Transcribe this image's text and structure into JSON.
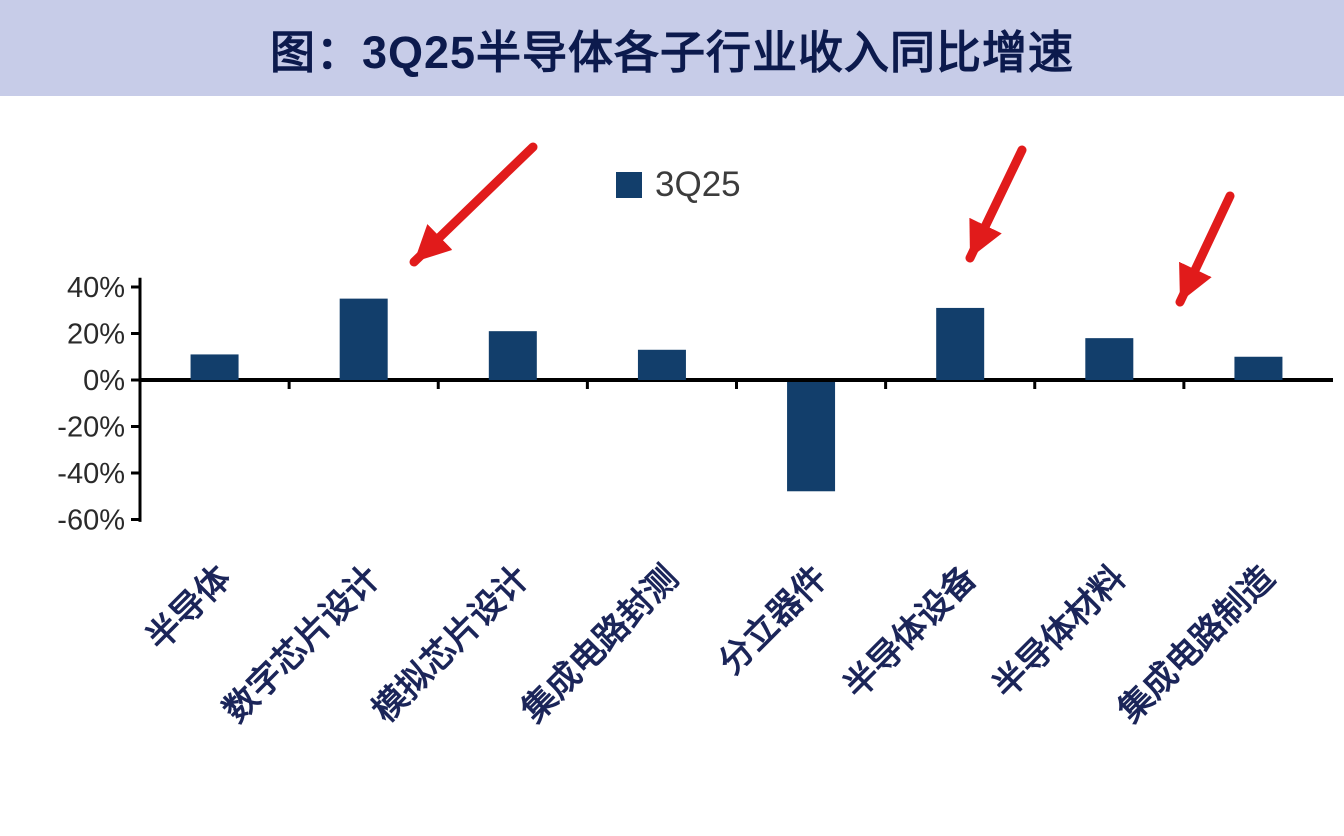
{
  "title": "图：3Q25半导体各子行业收入同比增速",
  "chart_data": {
    "type": "bar",
    "title": "图：3Q25半导体各子行业收入同比增速",
    "categories": [
      "半导体",
      "数字芯片设计",
      "模拟芯片设计",
      "集成电路封测",
      "分立器件",
      "半导体设备",
      "半导体材料",
      "集成电路制造"
    ],
    "series": [
      {
        "name": "3Q25",
        "values": [
          11,
          35,
          21,
          13,
          -47,
          31,
          18,
          10
        ]
      }
    ],
    "xlabel": "",
    "ylabel": "",
    "ylim": [
      -60,
      40
    ],
    "yticks": [
      40,
      20,
      0,
      -20,
      -40,
      -60
    ],
    "ytick_labels": [
      "40%",
      "20%",
      "0%",
      "-20%",
      "-40%",
      "-60%"
    ],
    "grid": false,
    "legend_position": "top-center",
    "annotations": [
      {
        "type": "arrow",
        "target": "数字芯片设计",
        "direction": "down-left"
      },
      {
        "type": "arrow",
        "target": "半导体设备",
        "direction": "down-left"
      },
      {
        "type": "arrow",
        "target": "半导体材料",
        "direction": "down-left"
      }
    ]
  },
  "colors": {
    "bar": "#123e6b",
    "header_band": "#c7cce8",
    "title_text": "#0c1a4d",
    "axis": "#000000",
    "ytick_label": "#2a2a2a",
    "category_label": "#1b2559",
    "legend_label": "#3c3c3c",
    "arrow": "#e11b1b"
  }
}
